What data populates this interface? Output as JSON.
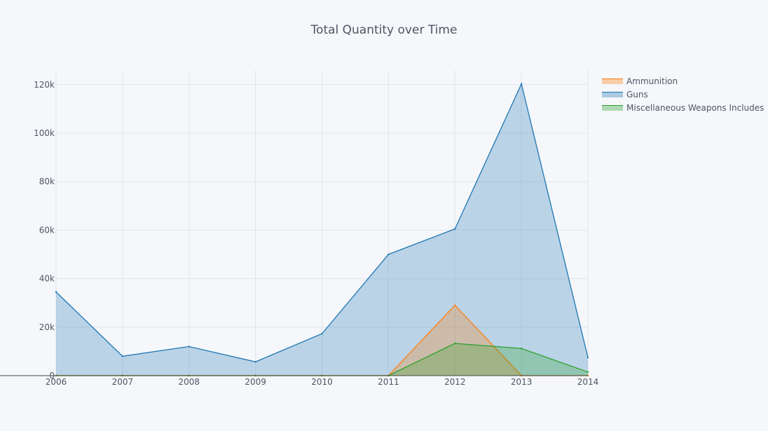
{
  "chart_data": {
    "type": "area",
    "title": "Total Quantity over Time",
    "xlabel": "",
    "ylabel": "",
    "x": [
      2006,
      2007,
      2008,
      2009,
      2010,
      2011,
      2012,
      2013,
      2014
    ],
    "xlim": [
      2006,
      2014
    ],
    "ylim": [
      0,
      126000
    ],
    "y_ticks": [
      0,
      20000,
      40000,
      60000,
      80000,
      100000,
      120000
    ],
    "y_tick_labels": [
      "0",
      "20k",
      "40k",
      "60k",
      "80k",
      "100k",
      "120k"
    ],
    "x_tick_labels": [
      "2006",
      "2007",
      "2008",
      "2009",
      "2010",
      "2011",
      "2012",
      "2013",
      "2014"
    ],
    "grid": true,
    "legend_position": "right",
    "series": [
      {
        "name": "Ammunition",
        "color": "#ff7f0e",
        "values": [
          0,
          0,
          0,
          0,
          0,
          0,
          29000,
          0,
          0
        ]
      },
      {
        "name": "Guns",
        "color": "#1f77b4",
        "values": [
          34500,
          8000,
          12000,
          5700,
          17300,
          50000,
          60500,
          120300,
          7500
        ]
      },
      {
        "name": "Miscellaneous Weapons Includes",
        "color": "#2ca02c",
        "values": [
          0,
          0,
          0,
          0,
          0,
          0,
          13300,
          11200,
          1500
        ]
      }
    ]
  }
}
